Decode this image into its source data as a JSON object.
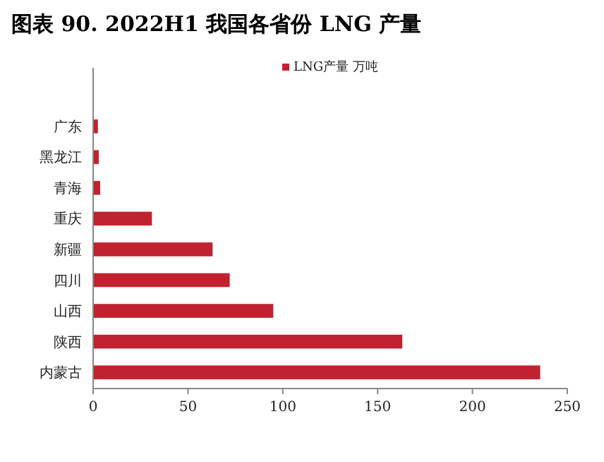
{
  "chart_data": {
    "type": "bar",
    "orientation": "horizontal",
    "title": "图表 90. 2022H1 我国各省份 LNG 产量",
    "categories": [
      "广东",
      "黑龙江",
      "青海",
      "重庆",
      "新疆",
      "四川",
      "山西",
      "陕西",
      "内蒙古"
    ],
    "series": [
      {
        "name": "LNG产量 万吨",
        "color": "#c0232f",
        "values": [
          2.5,
          3,
          3.7,
          31,
          63,
          72,
          95,
          163,
          235.7
        ]
      }
    ],
    "xlim": [
      0,
      250
    ],
    "xticks": [
      0,
      50,
      100,
      150,
      200,
      250
    ],
    "legend": "top",
    "grid": false
  }
}
